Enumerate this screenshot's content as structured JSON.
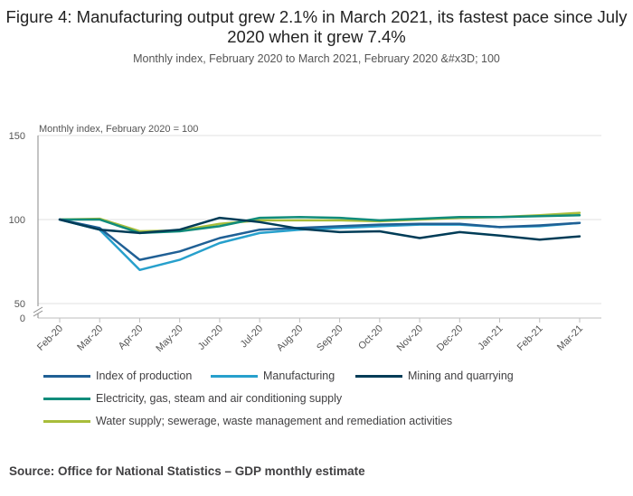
{
  "title": "Figure 4: Manufacturing output grew 2.1% in March 2021, its fastest pace since July 2020 when it grew 7.4%",
  "subtitle": "Monthly index, February 2020 to March 2021, February 2020 &#x3D; 100",
  "source": "Source: Office for National Statistics – GDP monthly estimate",
  "chart_data": {
    "type": "line",
    "ylabel": "Monthly index, February 2020 = 100",
    "ylim": [
      50,
      150
    ],
    "y_ticks": [
      50,
      100,
      150
    ],
    "y_zero_label": "0",
    "axis_break": true,
    "grid": true,
    "legend_placement": "bottom",
    "categories": [
      "Feb-20",
      "Mar-20",
      "Apr-20",
      "May-20",
      "Jun-20",
      "Jul-20",
      "Aug-20",
      "Sep-20",
      "Oct-20",
      "Nov-20",
      "Dec-20",
      "Jan-21",
      "Feb-21",
      "Mar-21"
    ],
    "series": [
      {
        "name": "Index of production",
        "color": "#206095",
        "values": [
          100,
          95,
          76,
          81,
          89,
          94,
          95,
          96,
          97,
          97.5,
          97.5,
          95.5,
          96.5,
          98
        ]
      },
      {
        "name": "Manufacturing",
        "color": "#27a0cc",
        "values": [
          100,
          94,
          70,
          76,
          86,
          92,
          94,
          95,
          96,
          97,
          97,
          95.5,
          96,
          98
        ]
      },
      {
        "name": "Mining and quarrying",
        "color": "#003c57",
        "values": [
          100,
          94,
          92,
          94,
          101,
          98.5,
          94.5,
          92.5,
          93,
          89,
          92.5,
          90.5,
          88,
          90
        ]
      },
      {
        "name": "Electricity, gas, steam and air conditioning supply",
        "color": "#118c7b",
        "values": [
          100,
          100,
          92,
          93,
          96,
          101,
          101.5,
          101,
          99.5,
          100.5,
          101.5,
          101.5,
          102,
          102.5
        ]
      },
      {
        "name": "Water supply; sewerage, waste management and remediation activities",
        "color": "#a8bd3a",
        "values": [
          100,
          100.5,
          93,
          93.5,
          97.5,
          99.5,
          99.5,
          99.5,
          99,
          100,
          101,
          101.5,
          102.5,
          104
        ]
      }
    ]
  }
}
